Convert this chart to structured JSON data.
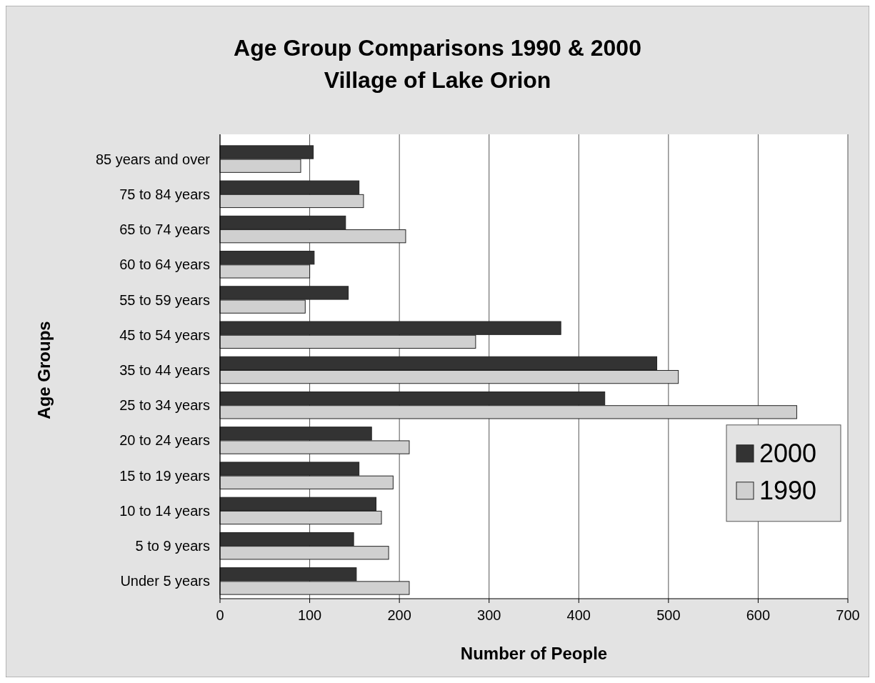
{
  "chart_data": {
    "type": "bar",
    "orientation": "horizontal",
    "title": "Age Group Comparisons 1990 & 2000",
    "subtitle": "Village of Lake Orion",
    "xlabel": "Number of People",
    "ylabel": "Age Groups",
    "categories": [
      "85 years and over",
      "75 to 84 years",
      "65 to 74 years",
      "60 to 64 years",
      "55 to 59 years",
      "45 to 54 years",
      "35 to 44 years",
      "25 to 34 years",
      "20 to 24 years",
      "15 to 19 years",
      "10 to 14 years",
      "5 to 9 years",
      "Under 5 years"
    ],
    "series": [
      {
        "name": "2000",
        "color": "#333333",
        "values": [
          104,
          155,
          140,
          105,
          143,
          380,
          487,
          429,
          169,
          155,
          174,
          149,
          152
        ]
      },
      {
        "name": "1990",
        "color": "#d0d0d0",
        "values": [
          90,
          160,
          207,
          100,
          95,
          285,
          511,
          643,
          211,
          193,
          180,
          188,
          211
        ]
      }
    ],
    "xlim": [
      0,
      700
    ],
    "xticks": [
      0,
      100,
      200,
      300,
      400,
      500,
      600,
      700
    ],
    "grid": "x",
    "legend": "right"
  }
}
